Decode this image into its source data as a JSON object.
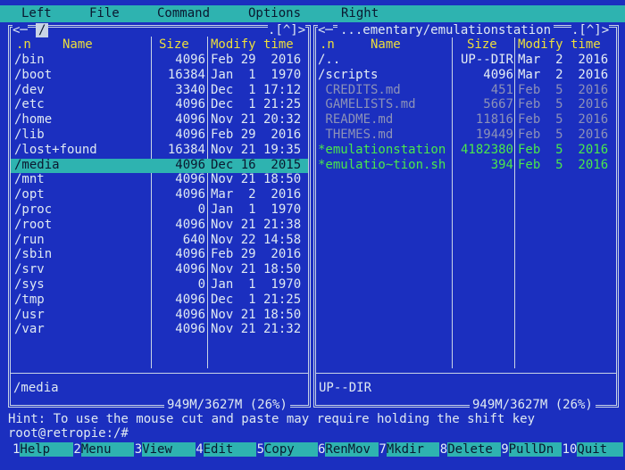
{
  "menu": [
    "Left",
    "File",
    "Command",
    "Options",
    "Right"
  ],
  "panels": [
    {
      "title_prefix": "<─",
      "title": "/",
      "controls": ".[^]>",
      "columns": [
        ".n",
        "Name",
        "Size",
        "Modify time"
      ],
      "selected_row": 7,
      "rows": [
        {
          "name": "/bin",
          "size": "4096",
          "modified": "Feb 29  2016"
        },
        {
          "name": "/boot",
          "size": "16384",
          "modified": "Jan  1  1970"
        },
        {
          "name": "/dev",
          "size": "3340",
          "modified": "Dec  1 17:12"
        },
        {
          "name": "/etc",
          "size": "4096",
          "modified": "Dec  1 21:25"
        },
        {
          "name": "/home",
          "size": "4096",
          "modified": "Nov 21 20:32"
        },
        {
          "name": "/lib",
          "size": "4096",
          "modified": "Feb 29  2016"
        },
        {
          "name": "/lost+found",
          "size": "16384",
          "modified": "Nov 21 19:35"
        },
        {
          "name": "/media",
          "size": "4096",
          "modified": "Dec 16  2015"
        },
        {
          "name": "/mnt",
          "size": "4096",
          "modified": "Nov 21 18:50"
        },
        {
          "name": "/opt",
          "size": "4096",
          "modified": "Mar  2  2016"
        },
        {
          "name": "/proc",
          "size": "0",
          "modified": "Jan  1  1970"
        },
        {
          "name": "/root",
          "size": "4096",
          "modified": "Nov 21 21:38"
        },
        {
          "name": "/run",
          "size": "640",
          "modified": "Nov 22 14:58"
        },
        {
          "name": "/sbin",
          "size": "4096",
          "modified": "Feb 29  2016"
        },
        {
          "name": "/srv",
          "size": "4096",
          "modified": "Nov 21 18:50"
        },
        {
          "name": "/sys",
          "size": "0",
          "modified": "Jan  1  1970"
        },
        {
          "name": "/tmp",
          "size": "4096",
          "modified": "Dec  1 21:25"
        },
        {
          "name": "/usr",
          "size": "4096",
          "modified": "Nov 21 18:50"
        },
        {
          "name": "/var",
          "size": "4096",
          "modified": "Nov 21 21:32"
        }
      ],
      "status": "/media",
      "disk": "949M/3627M (26%)"
    },
    {
      "title_prefix": "<─",
      "title": "...ementary/emulationstation",
      "controls": ".[^]>",
      "columns": [
        ".n",
        "Name",
        "Size",
        "Modify time"
      ],
      "rows": [
        {
          "name": "/..",
          "size": "UP--DIR",
          "modified": "Mar  2  2016",
          "color": "#e6eef4"
        },
        {
          "name": "/scripts",
          "size": "4096",
          "modified": "Mar  2  2016",
          "color": "#e6eef4"
        },
        {
          "name": " CREDITS.md",
          "size": "451",
          "modified": "Feb  5  2016",
          "color": "#8c92b8"
        },
        {
          "name": " GAMELISTS.md",
          "size": "5667",
          "modified": "Feb  5  2016",
          "color": "#8c92b8"
        },
        {
          "name": " README.md",
          "size": "11816",
          "modified": "Feb  5  2016",
          "color": "#8c92b8"
        },
        {
          "name": " THEMES.md",
          "size": "19449",
          "modified": "Feb  5  2016",
          "color": "#8c92b8"
        },
        {
          "name": "*emulationstation",
          "size": "4182380",
          "modified": "Feb  5  2016",
          "color": "#4be84b"
        },
        {
          "name": "*emulatio~tion.sh",
          "size": "394",
          "modified": "Feb  5  2016",
          "color": "#4be84b"
        }
      ],
      "status": "UP--DIR",
      "disk": "949M/3627M (26%)"
    }
  ],
  "hint": "Hint: To use the mouse cut and paste may require holding the shift key",
  "prompt": "root@retropie:/#",
  "function_keys": [
    {
      "key": "1",
      "label": "Help"
    },
    {
      "key": "2",
      "label": "Menu"
    },
    {
      "key": "3",
      "label": "View"
    },
    {
      "key": "4",
      "label": "Edit"
    },
    {
      "key": "5",
      "label": "Copy"
    },
    {
      "key": "6",
      "label": "RenMov"
    },
    {
      "key": "7",
      "label": "Mkdir"
    },
    {
      "key": "8",
      "label": "Delete"
    },
    {
      "key": "9",
      "label": "PullDn"
    },
    {
      "key": "10",
      "label": "Quit"
    }
  ]
}
